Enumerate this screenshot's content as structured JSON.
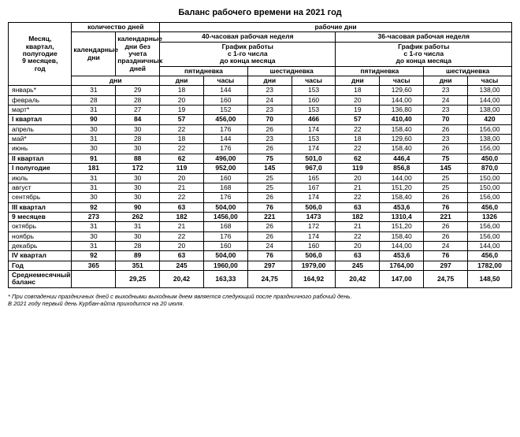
{
  "title": "Баланс рабочего времени на 2021 год",
  "headers": {
    "month": "Месяц,\nквартал,\nполугодие\n9 месяцев,\nгод",
    "count_days": "количество дней",
    "work_days": "рабочие дни",
    "calendar_days": "календарные дни",
    "cal_no_holidays": "календарные дни без учета праздничных дней",
    "week40": "40-часовая рабочая неделя",
    "week36": "36-часовая рабочая неделя",
    "schedule": "График работы\nс 1-го числа\nдо конца месяца",
    "five": "пятидневка",
    "six": "шестидневка",
    "dni": "дни",
    "days_label": "дни",
    "hours_label": "часы"
  },
  "rows": [
    {
      "label": "январь*",
      "cal": 31,
      "calnh": 29,
      "d40_5": 18,
      "h40_5": "144",
      "d40_6": 23,
      "h40_6": "153",
      "d36_5": 18,
      "h36_5": "129,60",
      "d36_6": 23,
      "h36_6": "138,00"
    },
    {
      "label": "февраль",
      "cal": 28,
      "calnh": 28,
      "d40_5": 20,
      "h40_5": "160",
      "d40_6": 24,
      "h40_6": "160",
      "d36_5": 20,
      "h36_5": "144,00",
      "d36_6": 24,
      "h36_6": "144,00"
    },
    {
      "label": "март*",
      "cal": 31,
      "calnh": 27,
      "d40_5": 19,
      "h40_5": "152",
      "d40_6": 23,
      "h40_6": "153",
      "d36_5": 19,
      "h36_5": "136,80",
      "d36_6": 23,
      "h36_6": "138,00"
    },
    {
      "label": "I квартал",
      "cal": 90,
      "calnh": 84,
      "d40_5": 57,
      "h40_5": "456,00",
      "d40_6": 70,
      "h40_6": "466",
      "d36_5": 57,
      "h36_5": "410,40",
      "d36_6": 70,
      "h36_6": "420",
      "bold": true
    },
    {
      "label": "апрель",
      "cal": 30,
      "calnh": 30,
      "d40_5": 22,
      "h40_5": "176",
      "d40_6": 26,
      "h40_6": "174",
      "d36_5": 22,
      "h36_5": "158,40",
      "d36_6": 26,
      "h36_6": "156,00"
    },
    {
      "label": "май*",
      "cal": 31,
      "calnh": 28,
      "d40_5": 18,
      "h40_5": "144",
      "d40_6": 23,
      "h40_6": "153",
      "d36_5": 18,
      "h36_5": "129,60",
      "d36_6": 23,
      "h36_6": "138,00"
    },
    {
      "label": "июнь",
      "cal": 30,
      "calnh": 30,
      "d40_5": 22,
      "h40_5": "176",
      "d40_6": 26,
      "h40_6": "174",
      "d36_5": 22,
      "h36_5": "158,40",
      "d36_6": 26,
      "h36_6": "156,00"
    },
    {
      "label": "II квартал",
      "cal": 91,
      "calnh": 88,
      "d40_5": 62,
      "h40_5": "496,00",
      "d40_6": 75,
      "h40_6": "501,0",
      "d36_5": 62,
      "h36_5": "446,4",
      "d36_6": 75,
      "h36_6": "450,0",
      "bold": true
    },
    {
      "label": "I полугодие",
      "cal": 181,
      "calnh": 172,
      "d40_5": 119,
      "h40_5": "952,00",
      "d40_6": 145,
      "h40_6": "967,0",
      "d36_5": 119,
      "h36_5": "856,8",
      "d36_6": 145,
      "h36_6": "870,0",
      "bold": true
    },
    {
      "label": "июль",
      "cal": 31,
      "calnh": 30,
      "d40_5": 20,
      "h40_5": "160",
      "d40_6": 25,
      "h40_6": "165",
      "d36_5": 20,
      "h36_5": "144,00",
      "d36_6": 25,
      "h36_6": "150,00"
    },
    {
      "label": "август",
      "cal": 31,
      "calnh": 30,
      "d40_5": 21,
      "h40_5": "168",
      "d40_6": 25,
      "h40_6": "167",
      "d36_5": 21,
      "h36_5": "151,20",
      "d36_6": 25,
      "h36_6": "150,00"
    },
    {
      "label": "сентябрь",
      "cal": 30,
      "calnh": 30,
      "d40_5": 22,
      "h40_5": "176",
      "d40_6": 26,
      "h40_6": "174",
      "d36_5": 22,
      "h36_5": "158,40",
      "d36_6": 26,
      "h36_6": "156,00"
    },
    {
      "label": "III квартал",
      "cal": 92,
      "calnh": 90,
      "d40_5": 63,
      "h40_5": "504,00",
      "d40_6": 76,
      "h40_6": "506,0",
      "d36_5": 63,
      "h36_5": "453,6",
      "d36_6": 76,
      "h36_6": "456,0",
      "bold": true
    },
    {
      "label": "9 месяцев",
      "cal": 273,
      "calnh": 262,
      "d40_5": 182,
      "h40_5": "1456,00",
      "d40_6": 221,
      "h40_6": "1473",
      "d36_5": 182,
      "h36_5": "1310,4",
      "d36_6": 221,
      "h36_6": "1326",
      "bold": true
    },
    {
      "label": "октябрь",
      "cal": 31,
      "calnh": 31,
      "d40_5": 21,
      "h40_5": "168",
      "d40_6": 26,
      "h40_6": "172",
      "d36_5": 21,
      "h36_5": "151,20",
      "d36_6": 26,
      "h36_6": "156,00"
    },
    {
      "label": "ноябрь",
      "cal": 30,
      "calnh": 30,
      "d40_5": 22,
      "h40_5": "176",
      "d40_6": 26,
      "h40_6": "174",
      "d36_5": 22,
      "h36_5": "158,40",
      "d36_6": 26,
      "h36_6": "156,00"
    },
    {
      "label": "декабрь",
      "cal": 31,
      "calnh": 28,
      "d40_5": 20,
      "h40_5": "160",
      "d40_6": 24,
      "h40_6": "160",
      "d36_5": 20,
      "h36_5": "144,00",
      "d36_6": 24,
      "h36_6": "144,00"
    },
    {
      "label": "IV квартал",
      "cal": 92,
      "calnh": 89,
      "d40_5": 63,
      "h40_5": "504,00",
      "d40_6": 76,
      "h40_6": "506,0",
      "d36_5": 63,
      "h36_5": "453,6",
      "d36_6": 76,
      "h36_6": "456,0",
      "bold": true
    },
    {
      "label": "Год",
      "cal": 365,
      "calnh": 351,
      "d40_5": 245,
      "h40_5": "1960,00",
      "d40_6": 297,
      "h40_6": "1979,00",
      "d36_5": 245,
      "h36_5": "1764,00",
      "d36_6": 297,
      "h36_6": "1782,00",
      "bold": true
    },
    {
      "label": "Среднемесячный баланс",
      "cal": "",
      "calnh": "29,25",
      "d40_5": "20,42",
      "h40_5": "163,33",
      "d40_6": "24,75",
      "h40_6": "164,92",
      "d36_5": "20,42",
      "h36_5": "147,00",
      "d36_6": "24,75",
      "h36_6": "148,50",
      "bold": true
    }
  ],
  "footnotes": [
    "* При совпадении праздничных дней с выходными выходным днем является следующий после праздничного рабочий день.",
    "В 2021 году первый день Курбан-айта приходится на 20 июля."
  ]
}
